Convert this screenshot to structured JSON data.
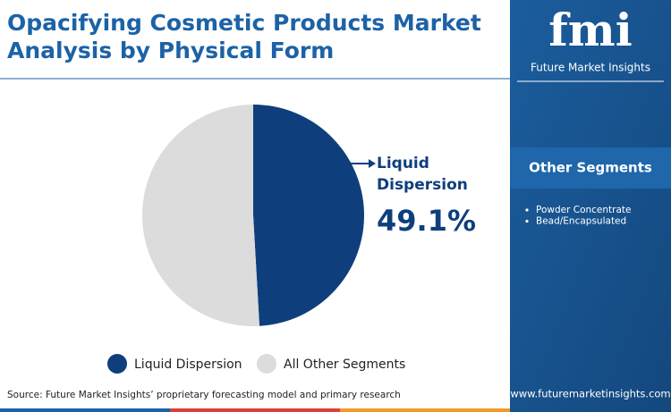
{
  "chart_data": {
    "type": "pie",
    "title": "Opacifying Cosmetic Products Market Analysis by Physical Form",
    "categories": [
      "Liquid Dispersion",
      "All Other Segments"
    ],
    "values": [
      49.1,
      50.9
    ],
    "value_labels": [
      "49.1%",
      null
    ],
    "colors": [
      "#0e3f7c",
      "#dcdcdc"
    ]
  },
  "sidebar": {
    "title": "Other Segments",
    "items": [
      "Powder Concentrate",
      "Bead/Encapsulated"
    ]
  },
  "brand": {
    "logo": "fmi",
    "name": "Future Market Insights"
  },
  "source": "Source: Future Market Insights’ proprietary forecasting model and primary research",
  "website": "www.futuremarketinsights.com"
}
